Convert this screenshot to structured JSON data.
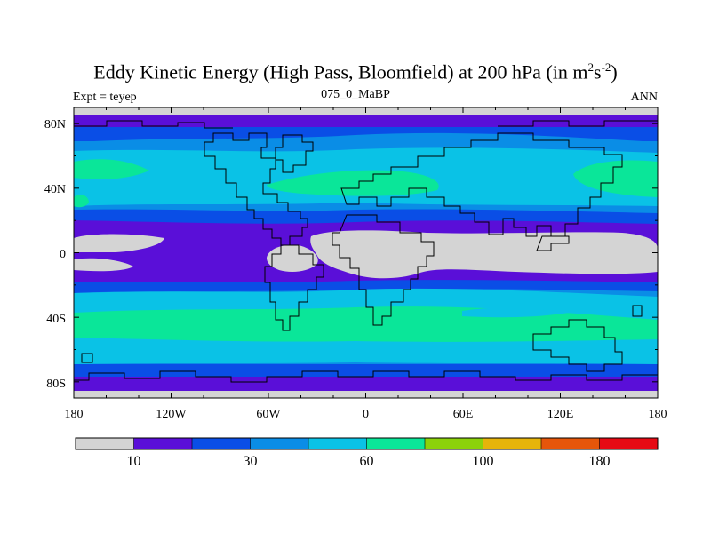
{
  "header": {
    "title_main": "Eddy Kinetic Energy (High Pass, Bloomfield) at 200 hPa (in m",
    "title_sup1": "2",
    "title_mid": "s",
    "title_sup2": "-2",
    "title_end": ")",
    "subtitle": "075_0_MaBP",
    "left_label": "Expt = teyep",
    "right_label": "ANN"
  },
  "axes": {
    "y_ticks": [
      "80N",
      "40N",
      "0",
      "40S",
      "80S"
    ],
    "x_ticks": [
      "180",
      "120W",
      "60W",
      "0",
      "60E",
      "120E",
      "180"
    ]
  },
  "colorbar": {
    "colors": [
      "#d4d4d4",
      "#5a0fd8",
      "#0a4ee6",
      "#0a8de6",
      "#0ac2e6",
      "#0ae699",
      "#8cd20a",
      "#e6b40a",
      "#e6560a",
      "#e60a14"
    ],
    "labels": [
      "10",
      "30",
      "60",
      "100",
      "180"
    ]
  },
  "chart_data": {
    "type": "heatmap",
    "title": "Eddy Kinetic Energy (High Pass, Bloomfield) at 200 hPa (in m2s-2)",
    "subtitle": "075_0_MaBP",
    "x_range": [
      -180,
      180
    ],
    "y_range": [
      -90,
      90
    ],
    "x_ticks": [
      "180",
      "120W",
      "60W",
      "0",
      "60E",
      "120E",
      "180"
    ],
    "y_ticks": [
      "80N",
      "40N",
      "0",
      "40S",
      "80S"
    ],
    "colorbar_labels": [
      "10",
      "30",
      "60",
      "100",
      "180"
    ],
    "colors": [
      "#d4d4d4",
      "#5a0fd8",
      "#0a4ee6",
      "#0a8de6",
      "#0ac2e6",
      "#0ae699",
      "#8cd20a",
      "#e6b40a",
      "#e6560a",
      "#e60a14"
    ]
  }
}
